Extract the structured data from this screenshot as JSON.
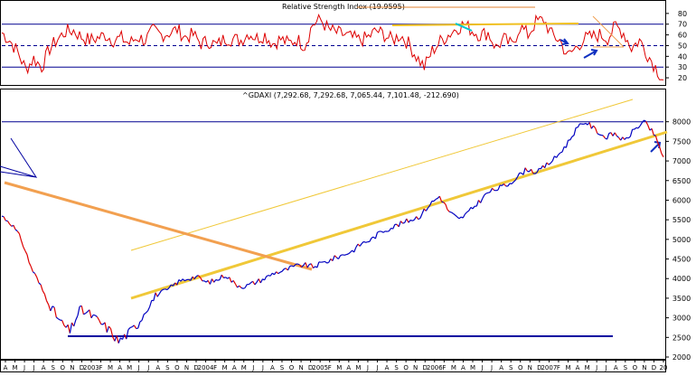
{
  "chart_data": [
    {
      "type": "line",
      "title": "Relative Strength Index (19.9595)",
      "ylim": [
        15,
        90
      ],
      "y_ticks": [
        "20",
        "30",
        "40",
        "50",
        "60",
        "70",
        "80"
      ],
      "reference_lines": [
        30,
        50,
        70
      ],
      "colors": {
        "series": "#dd0000",
        "reference": "#000090",
        "annotation": "#f0c020",
        "highlight": "#00c8d0",
        "arrows": "#1030c0"
      },
      "series": [
        {
          "values": [
            62,
            55,
            44,
            28,
            38,
            30,
            47,
            56,
            63,
            64,
            58,
            55,
            57,
            60,
            55,
            57,
            52,
            58,
            55,
            64,
            60,
            62,
            65,
            58,
            60,
            52,
            54,
            50,
            57,
            56,
            55,
            62,
            57,
            60,
            52,
            56,
            52,
            56,
            50,
            70,
            74,
            65,
            62,
            60,
            57,
            55,
            58,
            64,
            60,
            55,
            60,
            52,
            40,
            30,
            45,
            54,
            60,
            66,
            70,
            64,
            60,
            62,
            48,
            56,
            50,
            68,
            60,
            72,
            74,
            60,
            55,
            40,
            48,
            56,
            58,
            60,
            57,
            68,
            62,
            48,
            55,
            42,
            30,
            18
          ]
        }
      ]
    },
    {
      "type": "line",
      "title": "^GDAXI (7,292.68, 7,292.68, 7,065.44, 7,101.48, -212.690)",
      "ylim": [
        2000,
        8500
      ],
      "y_ticks": [
        "2000",
        "2500",
        "3000",
        "3500",
        "4000",
        "4500",
        "5000",
        "5500",
        "6000",
        "6500",
        "7000",
        "7500",
        "8000"
      ],
      "x_ticks": [
        "A",
        "M",
        "J",
        "J",
        "A",
        "S",
        "O",
        "N",
        "D",
        "2003",
        "F",
        "M",
        "A",
        "M",
        "J",
        "J",
        "A",
        "S",
        "O",
        "N",
        "D",
        "2004",
        "F",
        "M",
        "A",
        "M",
        "J",
        "J",
        "A",
        "S",
        "O",
        "N",
        "D",
        "2005",
        "F",
        "M",
        "A",
        "M",
        "J",
        "J",
        "A",
        "S",
        "O",
        "N",
        "D",
        "2006",
        "F",
        "M",
        "A",
        "M",
        "J",
        "J",
        "A",
        "S",
        "O",
        "N",
        "D",
        "2007",
        "F",
        "M",
        "A",
        "M",
        "J",
        "J",
        "A",
        "S",
        "O",
        "N",
        "D",
        "20"
      ],
      "colors": {
        "series": "#0000c0",
        "down": "#dd0000",
        "trend_yellow": "#f0c838",
        "trend_orange": "#f2a050",
        "support": "#0000a0"
      },
      "horizontal_lines": [
        8000,
        2200
      ],
      "series": [
        {
          "values": [
            5600,
            5400,
            5000,
            4300,
            3800,
            3300,
            2900,
            2650,
            3200,
            3100,
            2900,
            2700,
            2400,
            2600,
            2850,
            3300,
            3600,
            3700,
            3900,
            4000,
            4050,
            3900,
            3950,
            4100,
            3850,
            3800,
            3900,
            4000,
            4150,
            4200,
            4300,
            4350,
            4300,
            4400,
            4500,
            4600,
            4700,
            4900,
            5000,
            5200,
            5300,
            5400,
            5500,
            5600,
            5900,
            6100,
            5700,
            5500,
            5700,
            5950,
            6200,
            6300,
            6400,
            6600,
            6800,
            6700,
            6900,
            7100,
            7400,
            7800,
            8000,
            7800,
            7600,
            7700,
            7500,
            7800,
            8000,
            7700,
            7100
          ]
        }
      ]
    }
  ]
}
